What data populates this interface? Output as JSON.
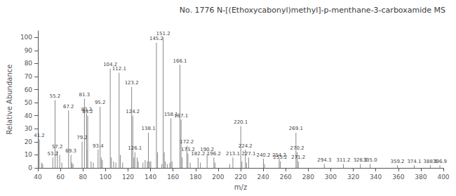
{
  "chart_data": {
    "type": "bar",
    "title": "No. 1776 N-[(Ethoxycabonyl)methyl]-p-menthane-3-carboxamide MS",
    "xlabel": "m/z",
    "ylabel": "Relative Abundance",
    "x": [
      41.2,
      43.2,
      44.2,
      53.2,
      55.2,
      57.2,
      59.3,
      61.2,
      67.2,
      69.3,
      70.2,
      71.2,
      79.2,
      81.3,
      83.2,
      83.4,
      84.2,
      87.2,
      89.2,
      93.4,
      95.2,
      96.2,
      97.2,
      104.2,
      105.2,
      107.2,
      109.2,
      112.1,
      113.2,
      115.2,
      123.2,
      124.2,
      125.2,
      126.1,
      128.1,
      129.1,
      133.2,
      135.2,
      137.2,
      138.1,
      139.1,
      140.2,
      145.2,
      146.2,
      150.0,
      151.2,
      152.2,
      153.2,
      155.0,
      157.1,
      158.1,
      159.1,
      166.1,
      167.1,
      168.1,
      172.2,
      173.2,
      175.2,
      182.2,
      184.2,
      190.2,
      196.2,
      197.2,
      210.2,
      213.1,
      220.1,
      221.1,
      224.2,
      225.2,
      227.1,
      240.2,
      241.2,
      254.2,
      255.2,
      269.1,
      270.2,
      271.2,
      294.3,
      311.2,
      326.3,
      335.0,
      359.2,
      374.1,
      388.5,
      396.9
    ],
    "values": [
      22,
      4,
      3,
      8,
      52,
      13,
      10,
      4,
      44,
      10,
      4,
      3,
      20,
      53,
      42,
      14,
      40,
      5,
      4,
      14,
      47,
      8,
      6,
      76,
      8,
      5,
      4,
      73,
      10,
      4,
      62,
      40,
      8,
      12,
      8,
      5,
      4,
      6,
      5,
      27,
      5,
      5,
      96,
      12,
      3,
      100,
      12,
      5,
      3,
      4,
      38,
      5,
      79,
      37,
      8,
      17,
      11,
      4,
      8,
      4,
      11,
      8,
      4,
      3,
      8,
      32,
      5,
      14,
      4,
      8,
      7,
      3,
      7,
      5,
      27,
      12,
      5,
      3,
      3,
      3,
      3,
      2,
      2,
      2,
      2
    ],
    "color": "#888888",
    "xlim": [
      40,
      400
    ],
    "ylim": [
      0,
      105
    ],
    "xticks": [
      40,
      60,
      80,
      100,
      120,
      140,
      160,
      180,
      200,
      220,
      240,
      260,
      280,
      300,
      320,
      340,
      360,
      380,
      400
    ],
    "yticks": [
      0,
      10,
      20,
      30,
      40,
      50,
      60,
      70,
      80,
      90,
      100
    ],
    "grid": false,
    "annotations": [
      {
        "x": 41.2,
        "y": 22,
        "text": "41.2"
      },
      {
        "x": 53.2,
        "y": 8,
        "text": "53.2"
      },
      {
        "x": 55.2,
        "y": 52,
        "text": "55.2"
      },
      {
        "x": 57.2,
        "y": 13,
        "text": "57.2"
      },
      {
        "x": 67.2,
        "y": 44,
        "text": "67.2"
      },
      {
        "x": 69.3,
        "y": 10,
        "text": "69.3"
      },
      {
        "x": 79.2,
        "y": 20,
        "text": "79.2"
      },
      {
        "x": 81.3,
        "y": 53,
        "text": "81.3"
      },
      {
        "x": 83.2,
        "y": 42,
        "text": "83.2"
      },
      {
        "x": 84.2,
        "y": 40,
        "text": "84.2"
      },
      {
        "x": 93.4,
        "y": 14,
        "text": "93.4"
      },
      {
        "x": 95.2,
        "y": 47,
        "text": "95.2"
      },
      {
        "x": 104.2,
        "y": 76,
        "text": "104.2"
      },
      {
        "x": 112.1,
        "y": 73,
        "text": "112.1"
      },
      {
        "x": 123.2,
        "y": 62,
        "text": "123.2"
      },
      {
        "x": 124.2,
        "y": 40,
        "text": "124.2"
      },
      {
        "x": 126.1,
        "y": 12,
        "text": "126.1"
      },
      {
        "x": 138.1,
        "y": 27,
        "text": "138.1"
      },
      {
        "x": 145.2,
        "y": 96,
        "text": "145.2"
      },
      {
        "x": 151.2,
        "y": 100,
        "text": "151.2"
      },
      {
        "x": 158.1,
        "y": 38,
        "text": "158.1"
      },
      {
        "x": 166.1,
        "y": 79,
        "text": "166.1"
      },
      {
        "x": 167.1,
        "y": 37,
        "text": "167.1"
      },
      {
        "x": 172.2,
        "y": 17,
        "text": "172.2"
      },
      {
        "x": 173.2,
        "y": 11,
        "text": "173.2"
      },
      {
        "x": 182.2,
        "y": 8,
        "text": "182.2"
      },
      {
        "x": 190.2,
        "y": 11,
        "text": "190.2"
      },
      {
        "x": 196.2,
        "y": 8,
        "text": "196.2"
      },
      {
        "x": 213.1,
        "y": 8,
        "text": "213.1"
      },
      {
        "x": 220.1,
        "y": 32,
        "text": "220.1"
      },
      {
        "x": 224.2,
        "y": 14,
        "text": "224.2"
      },
      {
        "x": 227.1,
        "y": 8,
        "text": "227.1"
      },
      {
        "x": 240.2,
        "y": 7,
        "text": "240.2"
      },
      {
        "x": 254.2,
        "y": 7,
        "text": "254.2"
      },
      {
        "x": 255.2,
        "y": 5,
        "text": "255.2"
      },
      {
        "x": 269.1,
        "y": 27,
        "text": "269.1"
      },
      {
        "x": 270.2,
        "y": 12,
        "text": "270.2"
      },
      {
        "x": 271.2,
        "y": 5,
        "text": "271.2"
      },
      {
        "x": 294.3,
        "y": 3,
        "text": "294.3"
      },
      {
        "x": 311.2,
        "y": 3,
        "text": "311.2"
      },
      {
        "x": 326.3,
        "y": 3,
        "text": "326.3"
      },
      {
        "x": 335.0,
        "y": 3,
        "text": "335.0"
      },
      {
        "x": 359.2,
        "y": 2,
        "text": "359.2"
      },
      {
        "x": 374.1,
        "y": 2,
        "text": "374.1"
      },
      {
        "x": 388.5,
        "y": 2,
        "text": "388.5"
      },
      {
        "x": 396.9,
        "y": 2,
        "text": "396.9"
      }
    ]
  }
}
